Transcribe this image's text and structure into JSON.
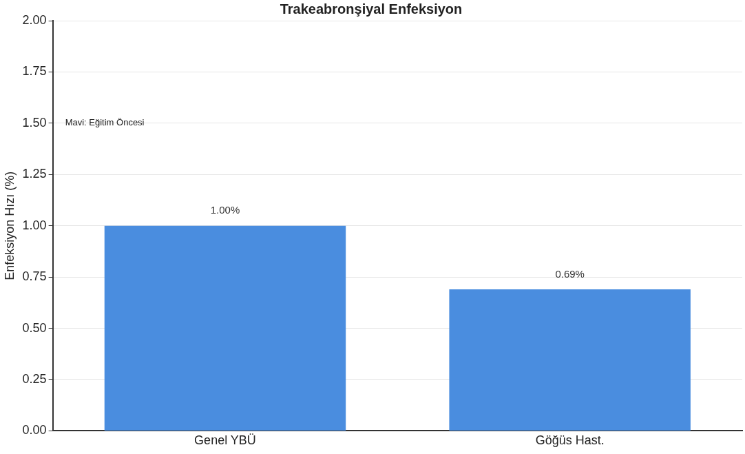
{
  "chart_data": {
    "type": "bar",
    "title": "Trakeabronşiyal Enfeksiyon",
    "ylabel": "Enfeksiyon Hızı (%)",
    "categories": [
      "Genel YBÜ",
      "Göğüs Hast."
    ],
    "values": [
      1.0,
      0.69
    ],
    "color": "#4a8ddf",
    "value_labels": [
      "1.00%",
      "0.69%"
    ],
    "ylim": [
      0,
      2
    ],
    "yticks": [
      {
        "value": 0,
        "label": "0.00"
      },
      {
        "value": 0.25,
        "label": "0.25"
      },
      {
        "value": 0.5,
        "label": "0.50"
      },
      {
        "value": 0.75,
        "label": "0.75"
      },
      {
        "value": 1,
        "label": "1.00"
      },
      {
        "value": 1.25,
        "label": "1.25"
      },
      {
        "value": 1.5,
        "label": "1.50"
      },
      {
        "value": 1.75,
        "label": "1.75"
      },
      {
        "value": 2,
        "label": "2.00"
      }
    ],
    "grid": "y",
    "legend": false,
    "annotations": [
      "Mavi: Eğitim Öncesi"
    ]
  }
}
